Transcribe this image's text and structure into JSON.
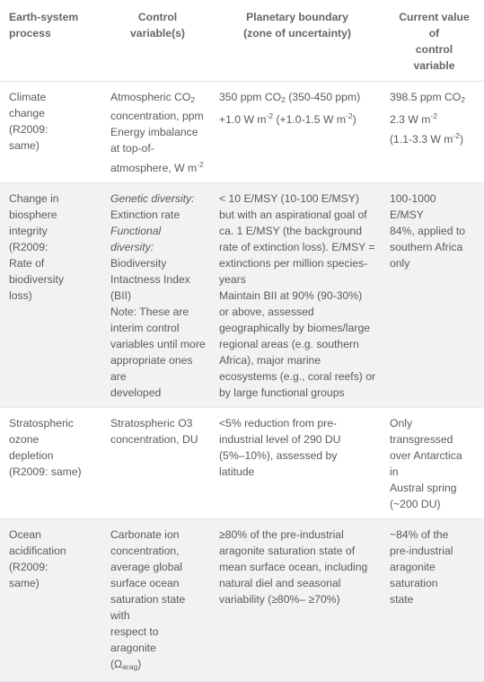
{
  "table": {
    "headers": [
      "Earth-system\nprocess",
      "Control\nvariable(s)",
      "Planetary boundary\n(zone of uncertainty)",
      "Current value\nof\ncontrol\nvariable"
    ],
    "rows": [
      {
        "process": [
          "Climate",
          "change",
          "(R2009:",
          "same)"
        ],
        "control": [
          [
            "Atmospheric CO",
            {
              "sub": "2"
            }
          ],
          [
            "concentration, ppm"
          ],
          [
            "Energy imbalance"
          ],
          [
            "at top-of-"
          ],
          [
            "atmosphere, W m",
            {
              "sup": "-2"
            }
          ]
        ],
        "boundary": [
          [
            "350 ppm CO",
            {
              "sub": "2"
            },
            " (350-450 ppm)"
          ],
          [
            "+1.0 W m",
            {
              "sup": "-2"
            },
            " (+1.0-1.5 W m",
            {
              "sup": "-2"
            },
            ")"
          ]
        ],
        "current": [
          [
            "398.5 ppm CO",
            {
              "sub": "2"
            }
          ],
          [
            "2.3 W m",
            {
              "sup": "-2"
            }
          ],
          [
            "(1.1-3.3 W m",
            {
              "sup": "-2"
            },
            ")"
          ]
        ]
      },
      {
        "process": [
          "Change in",
          "biosphere",
          "integrity",
          "(R2009:",
          "Rate of",
          "biodiversity",
          "loss)"
        ],
        "control": [
          [
            {
              "i": "Genetic diversity:"
            }
          ],
          [
            "Extinction rate"
          ],
          [
            {
              "i": "Functional diversity:"
            }
          ],
          [
            "Biodiversity"
          ],
          [
            "Intactness Index"
          ],
          [
            "(BII)"
          ],
          [
            "Note: These are"
          ],
          [
            "interim control"
          ],
          [
            "variables until more"
          ],
          [
            "appropriate ones"
          ],
          [
            "are"
          ],
          [
            "developed"
          ]
        ],
        "boundary": [
          [
            "< 10 E/MSY (10-100 E/MSY)"
          ],
          [
            "but with an aspirational goal of"
          ],
          [
            "ca. 1 E/MSY (the background"
          ],
          [
            "rate of extinction loss). E/MSY ="
          ],
          [
            "extinctions per million species-"
          ],
          [
            "years"
          ],
          [
            "Maintain BII at 90% (90-30%)"
          ],
          [
            "or above, assessed"
          ],
          [
            "geographically by biomes/large"
          ],
          [
            "regional areas (e.g. southern"
          ],
          [
            "Africa), major marine"
          ],
          [
            "ecosystems (e.g., coral reefs) or"
          ],
          [
            "by large functional groups"
          ]
        ],
        "current": [
          [
            "100-1000"
          ],
          [
            "E/MSY"
          ],
          [
            "84%, applied to"
          ],
          [
            "southern Africa"
          ],
          [
            "only"
          ]
        ]
      },
      {
        "process": [
          "Stratospheric",
          "ozone",
          "depletion",
          "(R2009: same)"
        ],
        "control": [
          [
            "Stratospheric O3"
          ],
          [
            "concentration, DU"
          ]
        ],
        "boundary": [
          [
            "<5% reduction from pre-"
          ],
          [
            "industrial level of 290 DU"
          ],
          [
            "(5%–10%), assessed by"
          ],
          [
            "latitude"
          ]
        ],
        "current": [
          [
            "Only"
          ],
          [
            "transgressed"
          ],
          [
            "over Antarctica"
          ],
          [
            "in"
          ],
          [
            "Austral spring"
          ],
          [
            "(~200 DU)"
          ]
        ]
      },
      {
        "process": [
          "Ocean",
          "acidification",
          "(R2009:",
          "same)"
        ],
        "control": [
          [
            "Carbonate ion"
          ],
          [
            "concentration,"
          ],
          [
            "average global"
          ],
          [
            "surface ocean"
          ],
          [
            "saturation state with"
          ],
          [
            "respect to aragonite"
          ],
          [
            "(Ω",
            {
              "sub": "arag"
            },
            ")"
          ]
        ],
        "boundary": [
          [
            "≥80% of the pre-industrial"
          ],
          [
            "aragonite saturation state of"
          ],
          [
            "mean surface ocean, including"
          ],
          [
            "natural diel and seasonal"
          ],
          [
            "variability (≥80%– ≥70%)"
          ]
        ],
        "current": [
          [
            "~84% of the"
          ],
          [
            "pre-industrial"
          ],
          [
            "aragonite"
          ],
          [
            "saturation"
          ],
          [
            "state"
          ]
        ]
      }
    ]
  }
}
